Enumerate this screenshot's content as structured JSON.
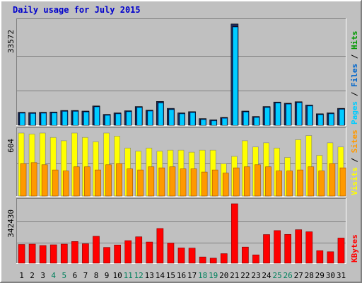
{
  "title": "Daily usage for July 2015",
  "colors": {
    "background": "#C0C0C0",
    "pages": "#00CCFF",
    "files": "#0066CC",
    "hits": "#009900",
    "sites": "#FF9900",
    "visits": "#FFFF00",
    "kbytes": "#FF0000",
    "weekend": "#00805C",
    "weekday": "#000000"
  },
  "chart_data": [
    {
      "type": "bar",
      "panel": "files-pages",
      "ytick": "33572",
      "ylim": [
        0,
        33572
      ],
      "legend": [
        {
          "label": "Pages",
          "color": "#00CCFF"
        },
        {
          "label": "Files",
          "color": "#0066CC"
        },
        {
          "label": "Hits",
          "color": "#009900"
        }
      ],
      "categories": [
        "1",
        "2",
        "3",
        "4",
        "5",
        "6",
        "7",
        "8",
        "9",
        "10",
        "11",
        "12",
        "13",
        "14",
        "15",
        "16",
        "17",
        "18",
        "19",
        "20",
        "21",
        "22",
        "23",
        "24",
        "25",
        "26",
        "27",
        "28",
        "29",
        "30",
        "31"
      ],
      "series": [
        {
          "name": "Hits",
          "values": [
            4300,
            4200,
            4300,
            4400,
            4900,
            4900,
            4700,
            6400,
            3600,
            4100,
            4800,
            6200,
            5000,
            7900,
            5600,
            4100,
            4500,
            2200,
            1800,
            2600,
            33600,
            4700,
            2900,
            6200,
            7700,
            7300,
            7800,
            6700,
            3800,
            4100,
            5600
          ]
        },
        {
          "name": "Files",
          "values": [
            4100,
            4000,
            4100,
            4200,
            4700,
            4700,
            4500,
            6200,
            3400,
            3900,
            4600,
            6000,
            4800,
            7500,
            5300,
            3900,
            4300,
            2000,
            1600,
            2400,
            32700,
            4500,
            2700,
            6000,
            7500,
            7100,
            7600,
            6500,
            3600,
            3900,
            5400
          ]
        },
        {
          "name": "Pages",
          "values": [
            4100,
            4000,
            4100,
            4200,
            4700,
            4700,
            4500,
            6200,
            3400,
            3900,
            4600,
            6000,
            4800,
            7500,
            5300,
            3900,
            4300,
            2000,
            1600,
            2400,
            32700,
            4500,
            2700,
            6000,
            7500,
            7100,
            7600,
            6500,
            3600,
            3900,
            5400
          ]
        }
      ]
    },
    {
      "type": "bar",
      "panel": "visits-sites",
      "ytick": "604",
      "ylim": [
        0,
        604
      ],
      "legend": [
        {
          "label": "Visits",
          "color": "#FFFF00"
        },
        {
          "label": "Sites",
          "color": "#FF9900"
        }
      ],
      "categories": [
        "1",
        "2",
        "3",
        "4",
        "5",
        "6",
        "7",
        "8",
        "9",
        "10",
        "11",
        "12",
        "13",
        "14",
        "15",
        "16",
        "17",
        "18",
        "19",
        "20",
        "21",
        "22",
        "23",
        "24",
        "25",
        "26",
        "27",
        "28",
        "29",
        "30",
        "31"
      ],
      "series": [
        {
          "name": "Visits",
          "values": [
            604,
            594,
            604,
            562,
            530,
            604,
            562,
            520,
            604,
            574,
            460,
            430,
            460,
            430,
            440,
            440,
            420,
            440,
            440,
            310,
            380,
            530,
            470,
            510,
            460,
            370,
            540,
            580,
            390,
            510,
            470
          ]
        },
        {
          "name": "Sites",
          "values": [
            310,
            320,
            300,
            250,
            240,
            280,
            280,
            250,
            300,
            310,
            260,
            250,
            280,
            270,
            280,
            260,
            260,
            230,
            250,
            220,
            270,
            280,
            300,
            280,
            240,
            240,
            250,
            280,
            240,
            310,
            270
          ]
        }
      ]
    },
    {
      "type": "bar",
      "panel": "kbytes",
      "ytick": "342430",
      "ylim": [
        0,
        342430
      ],
      "legend": [
        {
          "label": "KBytes",
          "color": "#FF0000"
        }
      ],
      "categories": [
        "1",
        "2",
        "3",
        "4",
        "5",
        "6",
        "7",
        "8",
        "9",
        "10",
        "11",
        "12",
        "13",
        "14",
        "15",
        "16",
        "17",
        "18",
        "19",
        "20",
        "21",
        "22",
        "23",
        "24",
        "25",
        "26",
        "27",
        "28",
        "29",
        "30",
        "31"
      ],
      "series": [
        {
          "name": "KBytes",
          "values": [
            108000,
            110000,
            102000,
            106000,
            110000,
            125000,
            112000,
            155000,
            91000,
            105000,
            130000,
            152000,
            122000,
            200000,
            116000,
            88000,
            87000,
            36000,
            29000,
            55000,
            342430,
            93000,
            48000,
            165000,
            188000,
            166000,
            193000,
            181000,
            72000,
            66000,
            145000
          ]
        }
      ]
    }
  ],
  "weekend_days": [
    "4",
    "5",
    "11",
    "12",
    "18",
    "19",
    "25",
    "26"
  ]
}
